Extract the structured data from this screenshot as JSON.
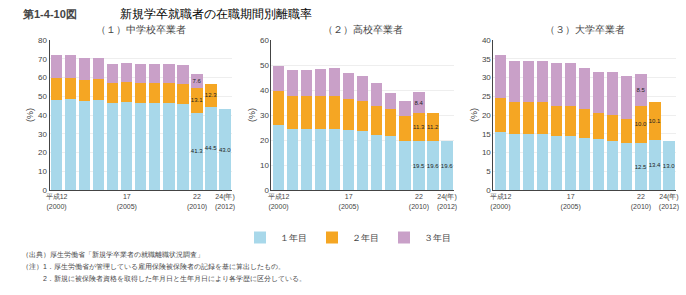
{
  "title": "新規学卒就職者の在職期間別離職率",
  "annotations": [
    "第1-4-10図",
    "（出典）厚生労働省「新規学卒業者の就職離職状況調査」",
    "（注）1．厚生労働省が管理している雇用保険被保険者の記録を基に算出したもの。",
    "　　　2．新規に被保険者資格を取得した年月日と生年月日により各学歴に区分している。"
  ],
  "chart_data": [
    {
      "type": "bar",
      "title": "（１）中学校卒業者",
      "ylabel": "(%)",
      "categories": [
        "平成12\n(2000)",
        null,
        null,
        null,
        null,
        "17\n(2005)",
        null,
        null,
        null,
        null,
        "22\n(2010)",
        null,
        "24(年)\n(2012)"
      ],
      "series": [
        {
          "name": "１年目",
          "color": "#a8d8ea",
          "values": [
            48.0,
            48.5,
            47.5,
            48.0,
            46.5,
            47.0,
            46.5,
            46.5,
            46.5,
            46.0,
            41.3,
            44.5,
            43.0
          ],
          "value_labels": [
            null,
            null,
            null,
            null,
            null,
            null,
            null,
            null,
            null,
            null,
            "41.3",
            "44.5",
            "43.0"
          ]
        },
        {
          "name": "２年目",
          "color": "#f5a623",
          "values": [
            11.5,
            11.5,
            11.0,
            11.0,
            10.5,
            10.5,
            10.5,
            10.5,
            10.5,
            10.5,
            13.1,
            12.3,
            0.0
          ],
          "value_labels": [
            null,
            null,
            null,
            null,
            null,
            null,
            null,
            null,
            null,
            null,
            "13.1",
            "12.3",
            null
          ]
        },
        {
          "name": "３年目",
          "color": "#c9a0c8",
          "values": [
            12.5,
            12.0,
            12.0,
            11.5,
            10.0,
            10.0,
            10.0,
            10.0,
            10.0,
            10.0,
            7.6,
            0.0,
            0.0
          ],
          "value_labels": [
            null,
            null,
            null,
            null,
            null,
            null,
            null,
            null,
            null,
            null,
            "7.6",
            null,
            null
          ]
        }
      ],
      "ylim": [
        0,
        80
      ],
      "yticks": [
        0,
        10,
        20,
        30,
        40,
        50,
        60,
        70,
        80
      ],
      "grid": true,
      "stacked": true,
      "data_labels": true,
      "legend": "bottom"
    },
    {
      "type": "bar",
      "title": "（２）高校卒業者",
      "ylabel": "(%)",
      "categories": [
        "平成12\n(2000)",
        null,
        null,
        null,
        null,
        "17\n(2005)",
        null,
        null,
        null,
        null,
        "22\n(2010)",
        null,
        "24(年)\n(2012)"
      ],
      "series": [
        {
          "name": "１年目",
          "color": "#a8d8ea",
          "values": [
            26.0,
            24.5,
            24.5,
            24.5,
            24.5,
            24.0,
            23.5,
            22.0,
            21.5,
            19.5,
            19.5,
            19.6,
            19.6
          ],
          "value_labels": [
            null,
            null,
            null,
            null,
            null,
            null,
            null,
            null,
            null,
            null,
            "19.5",
            "19.6",
            "19.6"
          ]
        },
        {
          "name": "２年目",
          "color": "#f5a623",
          "values": [
            13.5,
            13.0,
            13.0,
            13.0,
            13.0,
            12.5,
            12.0,
            11.5,
            11.0,
            10.0,
            11.3,
            11.2,
            0.0
          ],
          "value_labels": [
            null,
            null,
            null,
            null,
            null,
            null,
            null,
            null,
            null,
            null,
            "11.3",
            "11.2",
            null
          ]
        },
        {
          "name": "３年目",
          "color": "#c9a0c8",
          "values": [
            10.0,
            10.5,
            10.5,
            11.0,
            11.5,
            10.5,
            10.0,
            9.5,
            6.5,
            6.0,
            8.4,
            0.0,
            0.0
          ],
          "value_labels": [
            null,
            null,
            null,
            null,
            null,
            null,
            null,
            null,
            null,
            null,
            "8.4",
            null,
            null
          ]
        }
      ],
      "ylim": [
        0,
        60
      ],
      "yticks": [
        0,
        10,
        20,
        30,
        40,
        50,
        60
      ],
      "grid": true,
      "stacked": true,
      "data_labels": true,
      "legend": "bottom"
    },
    {
      "type": "bar",
      "title": "（３）大学卒業者",
      "ylabel": "(%)",
      "categories": [
        "平成12\n(2000)",
        null,
        null,
        null,
        null,
        "17\n(2005)",
        null,
        null,
        null,
        null,
        "22\n(2010)",
        null,
        "24(年)\n(2012)"
      ],
      "series": [
        {
          "name": "１年目",
          "color": "#a8d8ea",
          "values": [
            15.5,
            15.0,
            15.0,
            15.0,
            14.5,
            14.5,
            14.0,
            13.5,
            13.0,
            12.5,
            12.5,
            13.4,
            13.0
          ],
          "value_labels": [
            null,
            null,
            null,
            null,
            null,
            null,
            null,
            null,
            null,
            null,
            "12.5",
            "13.4",
            "13.0"
          ]
        },
        {
          "name": "２年目",
          "color": "#f5a623",
          "values": [
            9.0,
            8.5,
            8.5,
            8.5,
            8.0,
            8.0,
            7.5,
            7.0,
            7.0,
            6.5,
            10.0,
            10.1,
            0.0
          ],
          "value_labels": [
            null,
            null,
            null,
            null,
            null,
            null,
            null,
            null,
            null,
            null,
            "10.0",
            "10.1",
            null
          ]
        },
        {
          "name": "３年目",
          "color": "#c9a0c8",
          "values": [
            11.5,
            11.0,
            11.0,
            11.0,
            11.5,
            11.5,
            11.0,
            11.0,
            11.5,
            11.5,
            8.5,
            0.0,
            0.0
          ],
          "value_labels": [
            null,
            null,
            null,
            null,
            null,
            null,
            null,
            null,
            null,
            null,
            "8.5",
            null,
            null
          ]
        }
      ],
      "ylim": [
        0,
        40
      ],
      "yticks": [
        0,
        5,
        10,
        15,
        20,
        25,
        30,
        35,
        40
      ],
      "grid": true,
      "stacked": true,
      "data_labels": true,
      "legend": "bottom"
    }
  ]
}
